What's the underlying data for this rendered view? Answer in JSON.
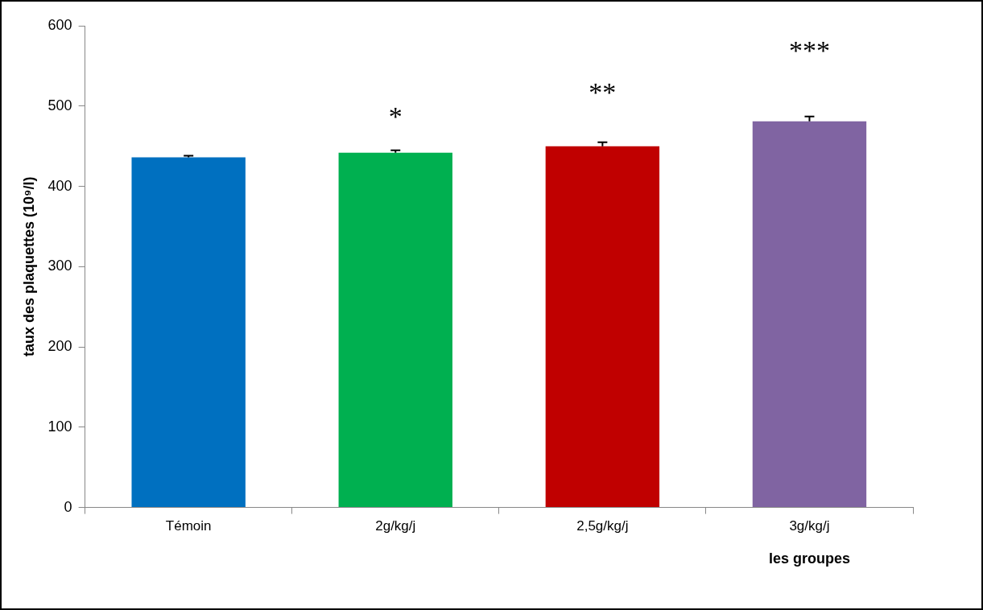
{
  "chart_data": {
    "type": "bar",
    "categories": [
      "Témoin",
      "2g/kg/j",
      "2,5g/kg/j",
      "3g/kg/j"
    ],
    "values": [
      436,
      442,
      450,
      481
    ],
    "errors": [
      2,
      3,
      5,
      6
    ],
    "colors": [
      "#0070c0",
      "#00b050",
      "#c00000",
      "#8064a2"
    ],
    "ylabel": "taux des plaquettes (10⁹/l)",
    "xlabel": "les groupes",
    "ylim": [
      0,
      600
    ],
    "yticks": [
      0,
      100,
      200,
      300,
      400,
      500,
      600
    ],
    "grid": false,
    "legend": false,
    "annotations": [
      "*",
      "**",
      "***"
    ]
  }
}
